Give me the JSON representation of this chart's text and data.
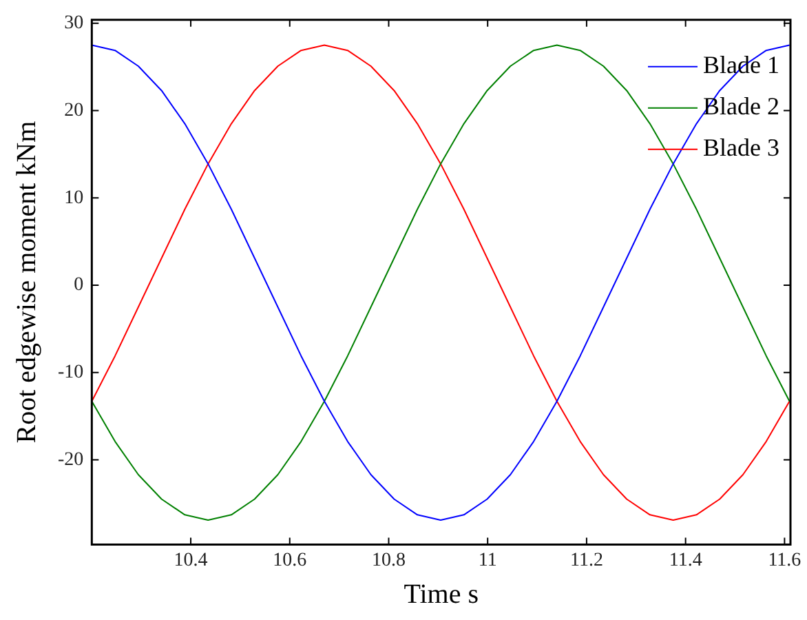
{
  "chart_data": {
    "type": "line",
    "xlabel": "Time s",
    "ylabel": "Root edgewise moment kNm",
    "x": [
      10.2,
      10.247,
      10.294,
      10.341,
      10.388,
      10.435,
      10.482,
      10.529,
      10.576,
      10.623,
      10.67,
      10.717,
      10.764,
      10.811,
      10.858,
      10.905,
      10.952,
      10.999,
      11.046,
      11.093,
      11.14,
      11.187,
      11.234,
      11.281,
      11.328,
      11.375,
      11.422,
      11.469,
      11.516,
      11.563,
      11.61
    ],
    "series": [
      {
        "name": "Blade 1",
        "color": "#0000ff",
        "values": [
          27.5,
          26.9,
          25.1,
          22.3,
          18.5,
          13.9,
          8.7,
          3.1,
          -2.5,
          -8.1,
          -13.3,
          -17.9,
          -21.7,
          -24.5,
          -26.3,
          -26.9,
          -26.3,
          -24.5,
          -21.7,
          -17.9,
          -13.3,
          -8.1,
          -2.5,
          3.1,
          8.7,
          13.9,
          18.5,
          22.3,
          25.1,
          26.9,
          27.5
        ]
      },
      {
        "name": "Blade 2",
        "color": "#008000",
        "values": [
          -13.3,
          -17.9,
          -21.7,
          -24.5,
          -26.3,
          -26.9,
          -26.3,
          -24.5,
          -21.7,
          -17.9,
          -13.3,
          -8.1,
          -2.5,
          3.1,
          8.7,
          13.9,
          18.5,
          22.3,
          25.1,
          26.9,
          27.5,
          26.9,
          25.1,
          22.3,
          18.5,
          13.9,
          8.7,
          3.1,
          -2.5,
          -8.1,
          -13.3
        ]
      },
      {
        "name": "Blade 3",
        "color": "#ff0000",
        "values": [
          -13.3,
          -8.1,
          -2.5,
          3.1,
          8.7,
          13.9,
          18.5,
          22.3,
          25.1,
          26.9,
          27.5,
          26.9,
          25.1,
          22.3,
          18.5,
          13.9,
          8.7,
          3.1,
          -2.5,
          -8.1,
          -13.3,
          -17.9,
          -21.7,
          -24.5,
          -26.3,
          -26.9,
          -26.3,
          -24.5,
          -21.7,
          -17.9,
          -13.3
        ]
      }
    ],
    "xlim": [
      10.2,
      11.612
    ],
    "xticks": [
      10.4,
      10.6,
      10.8,
      11,
      11.2,
      11.4,
      11.6
    ],
    "ylim": [
      -29.7,
      30.4
    ],
    "yticks": [
      -20,
      -10,
      0,
      10,
      20,
      30
    ],
    "grid": false,
    "legend": "top right",
    "marker": "none",
    "line_style": "solid"
  }
}
